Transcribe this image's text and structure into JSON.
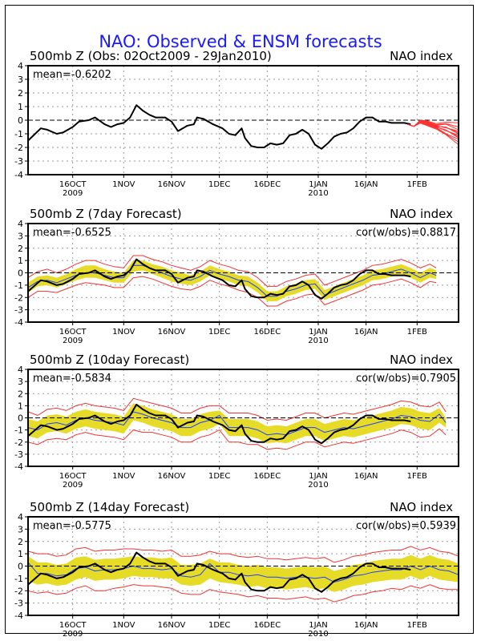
{
  "title": "NAO: Observed & ENSM forecasts",
  "colors": {
    "title": "#1a1aff",
    "observed": "#000000",
    "ensemble_member": "#ff3333",
    "spread_fill": "#e6dc28",
    "spread_bounds": "#ee3333",
    "ensemble_mean": "#2040ff",
    "grid": "#9a9a9a"
  },
  "chart_data": [
    {
      "type": "line",
      "title": "500mb Z (Obs: 02Oct2009 - 29Jan2010)",
      "right_label": "NAO index",
      "mean_label": "mean=-0.6202",
      "corr_label": "",
      "x_unit": "days since 02Oct2009",
      "xlim": [
        0,
        135
      ],
      "ylim": [
        -4,
        4
      ],
      "yticks": [
        "4",
        "3",
        "2",
        "1",
        "0",
        "-1",
        "-2",
        "-3",
        "-4"
      ],
      "xticks": [
        {
          "day": 14,
          "label": "16OCT",
          "sub": "2009"
        },
        {
          "day": 30,
          "label": "1NOV",
          "sub": ""
        },
        {
          "day": 45,
          "label": "16NOV",
          "sub": ""
        },
        {
          "day": 60,
          "label": "1DEC",
          "sub": ""
        },
        {
          "day": 75,
          "label": "16DEC",
          "sub": ""
        },
        {
          "day": 91,
          "label": "1JAN",
          "sub": "2010"
        },
        {
          "day": 106,
          "label": "16JAN",
          "sub": ""
        },
        {
          "day": 122,
          "label": "1FEB",
          "sub": ""
        }
      ],
      "grid": true,
      "zero_line": "dashed",
      "observed": {
        "x": [
          0,
          4,
          6,
          9,
          11,
          14,
          16,
          19,
          21,
          24,
          26,
          28,
          30,
          32,
          34,
          36,
          38,
          40,
          43,
          45,
          47,
          50,
          52,
          53,
          55,
          58,
          61,
          63,
          65,
          67,
          68,
          70,
          72,
          74,
          76,
          78,
          80,
          82,
          84,
          86,
          88,
          90,
          92,
          94,
          96,
          98,
          100,
          102,
          104,
          106,
          108,
          110,
          112,
          114,
          116,
          118,
          120
        ],
        "y": [
          -1.5,
          -0.6,
          -0.7,
          -1.0,
          -0.9,
          -0.5,
          -0.1,
          0.0,
          0.2,
          -0.3,
          -0.5,
          -0.3,
          -0.2,
          0.2,
          1.1,
          0.7,
          0.4,
          0.2,
          0.2,
          -0.1,
          -0.8,
          -0.4,
          -0.3,
          0.2,
          0.1,
          -0.3,
          -0.6,
          -1.0,
          -1.1,
          -0.6,
          -1.3,
          -1.9,
          -2.0,
          -2.0,
          -1.7,
          -1.8,
          -1.7,
          -1.1,
          -1.0,
          -0.7,
          -1.0,
          -1.8,
          -2.1,
          -1.7,
          -1.2,
          -1.0,
          -0.9,
          -0.6,
          -0.1,
          0.2,
          0.2,
          -0.1,
          -0.1,
          -0.2,
          -0.2,
          -0.2,
          -0.3
        ]
      },
      "ensemble_forecast": {
        "start_day": 119,
        "members_final": [
          -0.2,
          -0.5,
          -0.7,
          -0.8,
          -0.9,
          -1.0,
          -1.1,
          -1.2,
          -1.3,
          -1.4,
          -1.6,
          -1.8
        ],
        "end_day": 135
      }
    },
    {
      "type": "area",
      "title": "500mb Z (7day Forecast)",
      "right_label": "NAO index",
      "mean_label": "mean=-0.6525",
      "corr_label": "cor(w/obs)=0.8817",
      "xlim": [
        0,
        135
      ],
      "ylim": [
        -4,
        4
      ],
      "grid": true,
      "forecast": {
        "x": [
          0,
          3,
          6,
          9,
          12,
          15,
          18,
          21,
          24,
          27,
          30,
          33,
          36,
          39,
          42,
          45,
          48,
          51,
          54,
          57,
          60,
          63,
          66,
          69,
          72,
          75,
          78,
          81,
          84,
          87,
          90,
          93,
          96,
          99,
          102,
          105,
          108,
          111,
          114,
          117,
          120,
          123,
          126,
          128
        ],
        "mean": [
          -1.2,
          -0.7,
          -0.6,
          -0.8,
          -0.5,
          -0.2,
          0.0,
          0.0,
          -0.2,
          -0.4,
          -0.4,
          0.6,
          0.6,
          0.3,
          0.0,
          -0.3,
          -0.5,
          -0.6,
          -0.3,
          0.2,
          -0.1,
          -0.3,
          -0.6,
          -0.7,
          -1.2,
          -1.9,
          -1.9,
          -1.5,
          -1.3,
          -1.0,
          -0.9,
          -1.8,
          -1.5,
          -1.2,
          -0.9,
          -0.6,
          -0.2,
          -0.1,
          0.1,
          0.3,
          0.0,
          -0.4,
          0.0,
          -0.2
        ],
        "spread_lo": [
          -1.6,
          -1.1,
          -1.0,
          -1.2,
          -0.9,
          -0.6,
          -0.4,
          -0.4,
          -0.6,
          -0.8,
          -0.8,
          0.1,
          0.2,
          -0.1,
          -0.4,
          -0.7,
          -0.9,
          -1.0,
          -0.7,
          -0.2,
          -0.5,
          -0.7,
          -1.0,
          -1.1,
          -1.6,
          -2.3,
          -2.3,
          -1.9,
          -1.7,
          -1.4,
          -1.3,
          -2.2,
          -1.9,
          -1.6,
          -1.3,
          -1.0,
          -0.6,
          -0.5,
          -0.3,
          -0.1,
          -0.4,
          -0.8,
          -0.4,
          -0.5
        ],
        "spread_hi": [
          -0.8,
          -0.3,
          -0.2,
          -0.4,
          -0.1,
          0.3,
          0.6,
          0.6,
          0.3,
          0.1,
          0.0,
          1.0,
          1.0,
          0.7,
          0.5,
          0.2,
          0.0,
          -0.2,
          0.1,
          0.6,
          0.3,
          0.1,
          -0.2,
          -0.3,
          -0.8,
          -1.5,
          -1.5,
          -1.1,
          -0.9,
          -0.6,
          -0.5,
          -1.4,
          -1.1,
          -0.8,
          -0.5,
          -0.2,
          0.2,
          0.3,
          0.5,
          0.7,
          0.4,
          0.0,
          0.4,
          0.2
        ],
        "bound_lo": [
          -2.0,
          -1.5,
          -1.5,
          -1.6,
          -1.3,
          -1.0,
          -0.8,
          -0.9,
          -1.0,
          -1.2,
          -1.2,
          -0.4,
          -0.3,
          -0.5,
          -0.8,
          -1.1,
          -1.3,
          -1.4,
          -1.1,
          -0.6,
          -0.9,
          -1.1,
          -1.4,
          -1.6,
          -2.0,
          -2.7,
          -2.7,
          -2.3,
          -2.1,
          -1.8,
          -1.7,
          -2.6,
          -2.3,
          -2.0,
          -1.7,
          -1.4,
          -1.0,
          -0.9,
          -0.7,
          -0.5,
          -0.8,
          -1.2,
          -0.7,
          -0.8
        ],
        "bound_hi": [
          -0.4,
          0.1,
          0.3,
          0.0,
          0.3,
          0.7,
          1.0,
          1.0,
          0.7,
          0.5,
          0.4,
          1.4,
          1.4,
          1.1,
          0.9,
          0.6,
          0.4,
          0.2,
          0.5,
          1.0,
          0.7,
          0.5,
          0.2,
          0.1,
          -0.4,
          -1.1,
          -1.1,
          -0.7,
          -0.5,
          -0.2,
          -0.1,
          -1.0,
          -0.7,
          -0.4,
          -0.1,
          0.2,
          0.6,
          0.7,
          0.9,
          1.1,
          0.8,
          0.4,
          0.7,
          0.4
        ]
      }
    },
    {
      "type": "area",
      "title": "500mb Z (10day Forecast)",
      "right_label": "NAO index",
      "mean_label": "mean=-0.5834",
      "corr_label": "cor(w/obs)=0.7905",
      "xlim": [
        0,
        135
      ],
      "ylim": [
        -4,
        4
      ],
      "grid": true,
      "forecast": {
        "x": [
          0,
          3,
          6,
          9,
          12,
          15,
          18,
          21,
          24,
          27,
          30,
          33,
          36,
          39,
          42,
          45,
          48,
          51,
          54,
          57,
          60,
          63,
          66,
          69,
          72,
          75,
          78,
          81,
          84,
          87,
          90,
          93,
          96,
          99,
          102,
          105,
          108,
          111,
          114,
          117,
          120,
          123,
          126,
          129,
          131
        ],
        "mean": [
          -0.8,
          -1.0,
          -0.5,
          -0.4,
          -0.6,
          -0.2,
          0.0,
          -0.2,
          -0.3,
          -0.4,
          -0.6,
          0.5,
          0.3,
          0.0,
          -0.2,
          -0.4,
          -0.8,
          -0.8,
          -0.4,
          -0.2,
          0.2,
          -0.8,
          -0.8,
          -0.8,
          -1.0,
          -1.4,
          -1.3,
          -1.4,
          -1.1,
          -0.8,
          -0.8,
          -1.2,
          -1.0,
          -0.8,
          -0.9,
          -0.7,
          -0.5,
          -0.3,
          -0.1,
          0.2,
          0.1,
          -0.2,
          -0.3,
          0.3,
          -0.4
        ],
        "spread_lo": [
          -1.5,
          -1.7,
          -1.2,
          -1.1,
          -1.3,
          -0.9,
          -0.7,
          -0.9,
          -1.0,
          -1.1,
          -1.3,
          -0.2,
          -0.4,
          -0.7,
          -0.9,
          -1.1,
          -1.5,
          -1.5,
          -1.1,
          -0.9,
          -0.5,
          -1.5,
          -1.5,
          -1.5,
          -1.7,
          -2.1,
          -2.0,
          -2.1,
          -1.8,
          -1.5,
          -1.5,
          -1.9,
          -1.7,
          -1.5,
          -1.6,
          -1.4,
          -1.2,
          -1.0,
          -0.8,
          -0.5,
          -0.6,
          -0.9,
          -1.0,
          -0.4,
          -0.8
        ],
        "spread_hi": [
          -0.1,
          -0.3,
          0.2,
          0.3,
          0.1,
          0.5,
          0.7,
          0.5,
          0.4,
          0.3,
          0.1,
          1.2,
          1.0,
          0.7,
          0.5,
          0.3,
          -0.1,
          -0.1,
          0.3,
          0.5,
          0.6,
          -0.1,
          -0.1,
          -0.1,
          -0.3,
          -0.7,
          -0.6,
          -0.7,
          -0.4,
          -0.1,
          -0.1,
          -0.5,
          -0.3,
          -0.1,
          -0.2,
          0.0,
          0.2,
          0.4,
          0.6,
          0.9,
          0.8,
          0.5,
          0.4,
          0.8,
          0.0
        ],
        "bound_lo": [
          -2.0,
          -2.2,
          -1.8,
          -1.7,
          -1.8,
          -1.4,
          -1.2,
          -1.4,
          -1.5,
          -1.6,
          -1.8,
          -1.0,
          -1.2,
          -1.2,
          -1.4,
          -1.6,
          -2.0,
          -2.0,
          -1.6,
          -1.4,
          -1.0,
          -2.0,
          -2.0,
          -2.2,
          -2.2,
          -2.6,
          -2.5,
          -2.6,
          -2.3,
          -2.0,
          -2.0,
          -2.4,
          -2.2,
          -2.0,
          -2.1,
          -1.9,
          -1.7,
          -1.5,
          -1.3,
          -1.0,
          -1.2,
          -1.6,
          -1.5,
          -0.9,
          -1.4
        ],
        "bound_hi": [
          0.5,
          0.2,
          0.7,
          0.8,
          0.6,
          1.0,
          1.2,
          1.0,
          0.9,
          0.8,
          0.6,
          1.6,
          1.4,
          1.2,
          1.0,
          0.8,
          0.4,
          0.4,
          0.8,
          1.0,
          1.0,
          0.4,
          0.4,
          0.4,
          0.2,
          -0.2,
          -0.1,
          -0.2,
          0.1,
          0.4,
          0.4,
          0.0,
          0.2,
          0.4,
          0.3,
          0.5,
          0.7,
          0.9,
          1.1,
          1.4,
          1.3,
          1.0,
          0.9,
          1.3,
          0.5
        ]
      }
    },
    {
      "type": "area",
      "title": "500mb Z (14day Forecast)",
      "right_label": "NAO index",
      "mean_label": "mean=-0.5775",
      "corr_label": "cor(w/obs)=0.5939",
      "xlim": [
        0,
        135
      ],
      "ylim": [
        -4,
        4
      ],
      "grid": true,
      "forecast": {
        "x": [
          0,
          3,
          6,
          9,
          12,
          15,
          18,
          21,
          24,
          27,
          30,
          33,
          36,
          39,
          42,
          45,
          48,
          51,
          54,
          57,
          60,
          63,
          66,
          69,
          72,
          75,
          78,
          81,
          84,
          87,
          90,
          93,
          96,
          99,
          102,
          105,
          108,
          111,
          114,
          117,
          120,
          123,
          126,
          129,
          132,
          135
        ],
        "mean": [
          0.3,
          -0.6,
          -0.6,
          -0.8,
          -0.7,
          -0.2,
          -0.1,
          -0.4,
          -0.3,
          -0.3,
          -0.2,
          0.0,
          -0.2,
          -0.2,
          -0.3,
          -0.2,
          -0.8,
          -0.9,
          -0.7,
          0.2,
          -0.5,
          -0.5,
          -0.7,
          -0.8,
          -0.7,
          -0.9,
          -0.9,
          -1.0,
          -0.9,
          -0.9,
          -1.0,
          -0.9,
          -1.3,
          -1.1,
          -0.8,
          -0.7,
          -0.5,
          -0.4,
          -0.3,
          -0.3,
          0.0,
          -0.3,
          0.0,
          -0.3,
          -0.4,
          -0.7
        ],
        "spread_lo": [
          -1.2,
          -1.5,
          -1.4,
          -1.6,
          -1.5,
          -1.1,
          -0.9,
          -1.2,
          -1.1,
          -1.1,
          -1.0,
          -0.8,
          -0.9,
          -0.9,
          -1.0,
          -1.0,
          -1.5,
          -1.6,
          -1.5,
          -1.0,
          -1.3,
          -1.4,
          -1.5,
          -1.7,
          -1.6,
          -1.8,
          -1.8,
          -1.9,
          -1.8,
          -1.7,
          -1.9,
          -1.8,
          -2.1,
          -1.9,
          -1.6,
          -1.5,
          -1.3,
          -1.2,
          -1.1,
          -1.1,
          -0.8,
          -1.1,
          -0.8,
          -1.1,
          -1.2,
          -1.3
        ],
        "spread_hi": [
          0.8,
          0.3,
          0.3,
          0.1,
          0.2,
          0.7,
          0.8,
          0.5,
          0.6,
          0.6,
          0.7,
          0.8,
          0.7,
          0.7,
          0.6,
          0.7,
          0.1,
          0.1,
          0.2,
          0.6,
          0.3,
          0.3,
          0.1,
          0.0,
          0.1,
          -0.1,
          -0.1,
          -0.2,
          -0.1,
          0.0,
          -0.1,
          0.0,
          -0.4,
          -0.2,
          0.1,
          0.2,
          0.4,
          0.5,
          0.6,
          0.6,
          0.9,
          0.6,
          0.9,
          0.6,
          0.5,
          0.2
        ],
        "bound_lo": [
          -2.0,
          -2.2,
          -2.1,
          -2.3,
          -2.2,
          -1.8,
          -1.6,
          -2.0,
          -2.0,
          -1.8,
          -1.7,
          -1.5,
          -1.6,
          -1.6,
          -1.7,
          -1.8,
          -2.2,
          -2.3,
          -2.3,
          -1.9,
          -2.1,
          -2.2,
          -2.3,
          -2.5,
          -2.4,
          -2.6,
          -2.6,
          -2.7,
          -2.6,
          -2.5,
          -2.7,
          -2.6,
          -2.9,
          -2.7,
          -2.4,
          -2.3,
          -2.1,
          -2.0,
          -1.8,
          -1.9,
          -1.6,
          -1.8,
          -1.5,
          -1.8,
          -1.9,
          -1.9
        ],
        "bound_hi": [
          1.2,
          1.0,
          1.0,
          0.8,
          0.9,
          1.4,
          1.5,
          1.2,
          1.3,
          1.3,
          1.4,
          1.4,
          1.3,
          1.3,
          1.2,
          1.3,
          0.8,
          0.8,
          0.9,
          1.2,
          1.0,
          1.0,
          0.8,
          0.7,
          0.8,
          0.6,
          0.6,
          0.5,
          0.6,
          0.7,
          0.6,
          0.7,
          0.3,
          0.5,
          0.8,
          0.9,
          1.1,
          1.2,
          1.3,
          1.3,
          1.6,
          1.3,
          1.5,
          1.2,
          1.1,
          0.8
        ]
      }
    }
  ]
}
